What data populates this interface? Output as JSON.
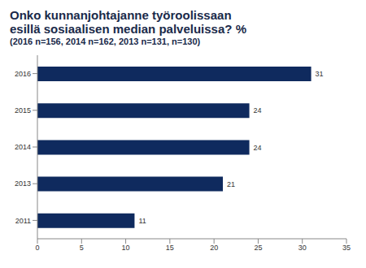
{
  "chart_data": {
    "type": "bar",
    "title": "Onko kunnanjohtajanne työroolissaan esillä sosiaalisen median palveluissa? %",
    "subtitle": "(2016 n=156, 2014 n=162, 2013 n=131, n=130)",
    "orientation": "horizontal",
    "categories": [
      "2016",
      "2015",
      "2014",
      "2013",
      "2011"
    ],
    "values": [
      31,
      24,
      24,
      21,
      11
    ],
    "color": "#0f2a5e",
    "xlim": [
      0,
      35
    ],
    "xticks": [
      0,
      5,
      10,
      15,
      20,
      25,
      30,
      35
    ],
    "grid": false,
    "data_labels": true
  }
}
